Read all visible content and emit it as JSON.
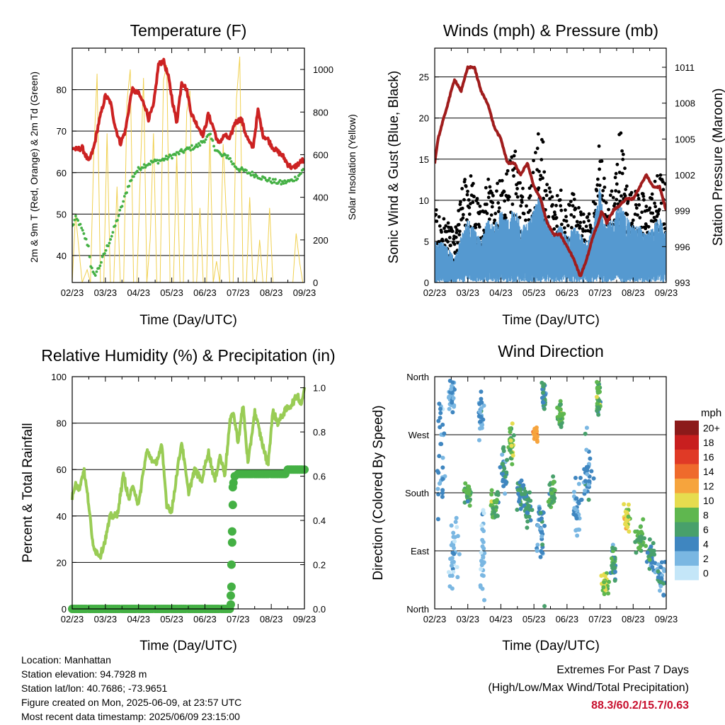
{
  "colors": {
    "temp": "#cc2222",
    "dew": "#44b044",
    "solar": "#f0d050",
    "gust": "#000000",
    "wind": "#5599d0",
    "pressure": "#a01c1c",
    "rh": "#99cc55",
    "precip": "#44b044",
    "extreme": "#c8102e"
  },
  "footer": {
    "location": "Location: Manhattan",
    "elevation": "Station elevation: 94.7928 m",
    "latlon": "Station lat/lon: 40.7686; -73.9651",
    "created": "Figure created on Mon, 2025-06-09, at 23:57 UTC",
    "recent": "Most recent data timestamp: 2025/06/09 23:15:00"
  },
  "extremes": {
    "title": "Extremes For Past 7 Days",
    "subtitle": "(High/Low/Max Wind/Total Precipitation)",
    "values": "88.3/60.2/15.7/0.63"
  },
  "chart_data": [
    {
      "id": "temp",
      "type": "line",
      "title": "Temperature (F)",
      "xlabel": "Time (Day/UTC)",
      "ylabel": "2m & 9m T (Red, Orange) & 2m Td (Green)",
      "ylabel_right": "Solar Insolation (Yellow)",
      "x_ticks": [
        "02/23",
        "03/23",
        "04/23",
        "05/23",
        "06/23",
        "07/23",
        "08/23",
        "09/23"
      ],
      "xlim": [
        0,
        7
      ],
      "ylim": [
        33.5,
        90
      ],
      "y_ticks": [
        40,
        50,
        60,
        70,
        80
      ],
      "ylim_right": [
        0,
        1100
      ],
      "y_ticks_right": [
        0,
        200,
        400,
        600,
        800,
        1000
      ],
      "grid": true,
      "series": [
        {
          "key": "temp",
          "x": [
            0,
            0.15,
            0.3,
            0.5,
            0.65,
            0.8,
            1.0,
            1.15,
            1.3,
            1.45,
            1.6,
            1.8,
            2.0,
            2.2,
            2.3,
            2.45,
            2.6,
            2.75,
            2.9,
            3.05,
            3.15,
            3.3,
            3.45,
            3.6,
            3.8,
            3.95,
            4.1,
            4.25,
            4.4,
            4.6,
            4.75,
            4.9,
            5.1,
            5.2,
            5.35,
            5.45,
            5.6,
            5.75,
            5.9,
            6.05,
            6.2,
            6.35,
            6.5,
            6.65,
            6.8,
            6.95,
            7.0
          ],
          "y": [
            66,
            65.5,
            66,
            62.5,
            66,
            72,
            78.5,
            77,
            71,
            67,
            70,
            80,
            79,
            76,
            73,
            76,
            86,
            87,
            83,
            76,
            72,
            82,
            80,
            74,
            71,
            69,
            74,
            71,
            67,
            69,
            68,
            72,
            73,
            70,
            67,
            66,
            75,
            69,
            68,
            66,
            65,
            64,
            62,
            61,
            62,
            63,
            62
          ]
        },
        {
          "key": "dew",
          "x": [
            0,
            0.1,
            0.2,
            0.35,
            0.5,
            0.55,
            0.65,
            0.8,
            1.0,
            1.2,
            1.5,
            1.7,
            1.9,
            2.1,
            2.4,
            2.7,
            3.0,
            3.3,
            3.6,
            3.8,
            4.0,
            4.15,
            4.3,
            4.5,
            4.7,
            4.85,
            5.0,
            5.3,
            5.5,
            5.8,
            6.0,
            6.3,
            6.6,
            6.8,
            7.0
          ],
          "y": [
            47,
            49,
            48,
            45,
            42,
            38,
            35,
            37,
            41,
            45,
            52,
            57,
            60,
            61.5,
            62.5,
            63,
            64,
            65,
            66,
            66.5,
            68,
            69,
            66,
            64,
            64,
            62,
            61,
            60,
            59.5,
            58.5,
            58,
            57.5,
            58,
            59,
            61
          ]
        },
        {
          "key": "solar",
          "x": [
            0,
            0.1,
            0.3,
            0.45,
            0.55,
            0.65,
            0.75,
            0.85,
            0.95,
            1.05,
            1.15,
            1.25,
            1.35,
            1.45,
            1.55,
            1.65,
            1.75,
            1.85,
            1.95,
            2.05,
            2.15,
            2.25,
            2.35,
            2.45,
            2.55,
            2.65,
            2.75,
            2.85,
            2.95,
            3.05,
            3.15,
            3.25,
            3.35,
            3.45,
            3.55,
            3.65,
            3.75,
            3.85,
            3.95,
            4.05,
            4.15,
            4.25,
            4.35,
            4.45,
            4.55,
            4.65,
            4.75,
            4.85,
            4.95,
            5.05,
            5.15,
            5.25,
            5.35,
            5.45,
            5.55,
            5.65,
            5.75,
            5.85,
            5.95,
            6.05,
            6.15,
            6.25,
            6.35,
            6.45,
            6.55,
            6.65,
            6.75,
            6.85,
            6.95,
            7.0
          ],
          "y": [
            0,
            320,
            0,
            60,
            0,
            600,
            980,
            0,
            0,
            700,
            0,
            0,
            450,
            0,
            0,
            850,
            1000,
            0,
            0,
            500,
            960,
            0,
            200,
            700,
            0,
            0,
            950,
            1020,
            0,
            0,
            600,
            0,
            0,
            800,
            900,
            0,
            0,
            350,
            0,
            0,
            700,
            0,
            100,
            0,
            650,
            300,
            0,
            0,
            860,
            1060,
            0,
            0,
            400,
            0,
            0,
            200,
            0,
            0,
            350,
            0,
            0,
            0,
            0,
            0,
            0,
            0,
            230,
            100,
            0,
            0
          ]
        }
      ]
    },
    {
      "id": "wind",
      "type": "scatter",
      "title": "Winds (mph) & Pressure (mb)",
      "xlabel": "Time (Day/UTC)",
      "ylabel": "Sonic Wind & Gust (Blue, Black)",
      "ylabel_right": "Station Pressure (Maroon)",
      "x_ticks": [
        "02/23",
        "03/23",
        "04/23",
        "05/23",
        "06/23",
        "07/23",
        "08/23",
        "09/23"
      ],
      "xlim": [
        0,
        7
      ],
      "ylim": [
        0,
        28.5
      ],
      "y_ticks": [
        0,
        5,
        10,
        15,
        20,
        25
      ],
      "ylim_right": [
        993,
        1012.6
      ],
      "y_ticks_right": [
        993,
        996,
        999,
        1002,
        1005,
        1008,
        1011
      ],
      "grid": true,
      "gust_envelope": {
        "x": [
          0,
          0.3,
          0.6,
          0.8,
          1.0,
          1.2,
          1.4,
          1.6,
          1.8,
          2.0,
          2.2,
          2.4,
          2.6,
          2.8,
          3.0,
          3.2,
          3.4,
          3.6,
          3.8,
          4.0,
          4.2,
          4.4,
          4.6,
          4.8,
          5.0,
          5.2,
          5.4,
          5.6,
          5.8,
          6.0,
          6.2,
          6.4,
          6.6,
          6.8,
          7.0
        ],
        "y": [
          9,
          8,
          6,
          11,
          15,
          12,
          9,
          13,
          11,
          16,
          14,
          18,
          13,
          11,
          16,
          20,
          13,
          10,
          12,
          10,
          11,
          9,
          8,
          10,
          19,
          10,
          12,
          20,
          13,
          11,
          12,
          10,
          12,
          14,
          12
        ]
      },
      "wind_envelope": {
        "x": [
          0,
          0.3,
          0.6,
          0.8,
          1.0,
          1.2,
          1.4,
          1.6,
          1.8,
          2.0,
          2.2,
          2.4,
          2.6,
          2.8,
          3.0,
          3.2,
          3.4,
          3.6,
          3.8,
          4.0,
          4.2,
          4.4,
          4.6,
          4.8,
          5.0,
          5.2,
          5.4,
          5.6,
          5.8,
          6.0,
          6.2,
          6.4,
          6.6,
          6.8,
          7.0
        ],
        "y": [
          5,
          5,
          3,
          6,
          8,
          7,
          5,
          8,
          7,
          9,
          8,
          9,
          8,
          7,
          9,
          11,
          8,
          6,
          7,
          6,
          7,
          6,
          5,
          7,
          12,
          7,
          8,
          10,
          8,
          7,
          7,
          6,
          7,
          8,
          6
        ]
      },
      "series": [
        {
          "key": "pressure",
          "x": [
            0,
            0.1,
            0.3,
            0.6,
            0.8,
            1.0,
            1.2,
            1.4,
            1.6,
            1.8,
            2.0,
            2.2,
            2.4,
            2.6,
            2.8,
            3.0,
            3.2,
            3.4,
            3.6,
            3.8,
            4.0,
            4.2,
            4.4,
            4.6,
            4.8,
            4.95,
            5.05,
            5.2,
            5.4,
            5.6,
            5.8,
            6.0,
            6.2,
            6.4,
            6.6,
            6.8,
            7.0
          ],
          "y": [
            1003,
            1005,
            1007,
            1010,
            1009,
            1011,
            1011,
            1009,
            1008,
            1006,
            1005,
            1003,
            1003,
            1002,
            1003,
            1001,
            1000,
            998,
            997,
            997,
            996,
            995,
            993.5,
            995,
            997,
            998,
            999,
            998,
            999,
            999.5,
            1000,
            1000,
            1001,
            1002,
            1001,
            1001,
            999
          ]
        }
      ]
    },
    {
      "id": "rh",
      "type": "line",
      "title": "Relative Humidity (%) & Precipitation (in)",
      "xlabel": "Time (Day/UTC)",
      "ylabel": "Percent & Total Rainfall",
      "x_ticks": [
        "02/23",
        "03/23",
        "04/23",
        "05/23",
        "06/23",
        "07/23",
        "08/23",
        "09/23"
      ],
      "xlim": [
        0,
        7
      ],
      "ylim": [
        0,
        100
      ],
      "y_ticks": [
        0,
        20,
        40,
        60,
        80,
        100
      ],
      "ylim_right": [
        0,
        1.05
      ],
      "y_ticks_right": [
        0.0,
        0.2,
        0.4,
        0.6,
        0.8,
        1.0
      ],
      "y_ticks_right_labels": [
        "0.0",
        "0.2",
        "0.4",
        "0.6",
        "0.8",
        "1.0"
      ],
      "grid": true,
      "series": [
        {
          "key": "rh",
          "x": [
            0,
            0.1,
            0.2,
            0.35,
            0.5,
            0.6,
            0.7,
            0.85,
            1.0,
            1.15,
            1.35,
            1.55,
            1.7,
            1.85,
            2.0,
            2.1,
            2.25,
            2.5,
            2.7,
            2.85,
            3.0,
            3.15,
            3.3,
            3.5,
            3.7,
            3.9,
            4.1,
            4.3,
            4.45,
            4.6,
            4.75,
            4.85,
            5.0,
            5.15,
            5.3,
            5.5,
            5.75,
            5.9,
            6.05,
            6.2,
            6.4,
            6.6,
            6.8,
            6.9,
            7.0
          ],
          "y": [
            48,
            55,
            51,
            60,
            45,
            30,
            25,
            23,
            30,
            40,
            40,
            58,
            47,
            53,
            44,
            55,
            68,
            62,
            70,
            45,
            42,
            58,
            72,
            50,
            60,
            55,
            68,
            55,
            66,
            58,
            80,
            85,
            72,
            88,
            62,
            85,
            70,
            62,
            85,
            80,
            85,
            88,
            92,
            88,
            95
          ]
        },
        {
          "key": "precip",
          "x": [
            0,
            0.5,
            1.0,
            1.5,
            2.0,
            2.5,
            3.0,
            3.5,
            4.0,
            4.5,
            4.75,
            4.78,
            4.78,
            4.8,
            4.8,
            4.82,
            4.82,
            4.84,
            4.84,
            4.86,
            4.9,
            5.0,
            5.5,
            6.0,
            6.5,
            7.0
          ],
          "y": [
            0,
            0,
            0,
            0,
            0,
            0,
            0,
            0,
            0,
            0,
            0,
            0.02,
            0.06,
            0.1,
            0.2,
            0.3,
            0.35,
            0.47,
            0.55,
            0.57,
            0.6,
            0.61,
            0.61,
            0.61,
            0.63,
            0.63
          ]
        }
      ]
    },
    {
      "id": "dir",
      "type": "scatter",
      "title": "Wind Direction",
      "xlabel": "Time (Day/UTC)",
      "ylabel": "Direction (Colored By Speed)",
      "x_ticks": [
        "02/23",
        "03/23",
        "04/23",
        "05/23",
        "06/23",
        "07/23",
        "08/23",
        "09/23"
      ],
      "xlim": [
        0,
        7
      ],
      "ylim": [
        0,
        360
      ],
      "y_ticks": [
        0,
        90,
        180,
        270,
        360
      ],
      "y_tick_labels": [
        "North",
        "East",
        "South",
        "West",
        "North"
      ],
      "grid": true,
      "colorbar": {
        "unit": "mph",
        "labels": [
          "20+",
          "18",
          "16",
          "14",
          "12",
          "10",
          "8",
          "6",
          "4",
          "2",
          "0"
        ],
        "colors": [
          "#8c1a1a",
          "#c81f1f",
          "#e03a26",
          "#ef6a2c",
          "#f6a43d",
          "#e6dc4f",
          "#5fb74f",
          "#48a06b",
          "#3f86c0",
          "#7ab7e2",
          "#c4e6f8"
        ]
      },
      "clusters": [
        {
          "x": 0.2,
          "dir": 250,
          "sx": 0.15,
          "sd": 110,
          "speed": 3
        },
        {
          "x": 0.5,
          "dir": 330,
          "sx": 0.1,
          "sd": 25,
          "speed": 3
        },
        {
          "x": 0.55,
          "dir": 90,
          "sx": 0.15,
          "sd": 60,
          "speed": 2
        },
        {
          "x": 1.0,
          "dir": 180,
          "sx": 0.1,
          "sd": 15,
          "speed": 7
        },
        {
          "x": 1.4,
          "dir": 300,
          "sx": 0.06,
          "sd": 30,
          "speed": 3
        },
        {
          "x": 1.45,
          "dir": 90,
          "sx": 0.06,
          "sd": 70,
          "speed": 2
        },
        {
          "x": 1.8,
          "dir": 165,
          "sx": 0.12,
          "sd": 25,
          "speed": 7
        },
        {
          "x": 2.1,
          "dir": 210,
          "sx": 0.1,
          "sd": 40,
          "speed": 5
        },
        {
          "x": 2.3,
          "dir": 250,
          "sx": 0.1,
          "sd": 30,
          "speed": 8
        },
        {
          "x": 2.6,
          "dir": 180,
          "sx": 0.15,
          "sd": 30,
          "speed": 5
        },
        {
          "x": 2.8,
          "dir": 160,
          "sx": 0.1,
          "sd": 25,
          "speed": 6
        },
        {
          "x": 3.05,
          "dir": 270,
          "sx": 0.07,
          "sd": 10,
          "speed": 13
        },
        {
          "x": 3.2,
          "dir": 120,
          "sx": 0.12,
          "sd": 60,
          "speed": 4
        },
        {
          "x": 3.3,
          "dir": 330,
          "sx": 0.06,
          "sd": 25,
          "speed": 5
        },
        {
          "x": 3.55,
          "dir": 180,
          "sx": 0.1,
          "sd": 30,
          "speed": 7
        },
        {
          "x": 3.8,
          "dir": 300,
          "sx": 0.1,
          "sd": 20,
          "speed": 7
        },
        {
          "x": 4.3,
          "dir": 150,
          "sx": 0.12,
          "sd": 40,
          "speed": 3
        },
        {
          "x": 4.6,
          "dir": 210,
          "sx": 0.2,
          "sd": 60,
          "speed": 4
        },
        {
          "x": 4.95,
          "dir": 330,
          "sx": 0.06,
          "sd": 30,
          "speed": 7
        },
        {
          "x": 5.15,
          "dir": 40,
          "sx": 0.12,
          "sd": 20,
          "speed": 9
        },
        {
          "x": 5.4,
          "dir": 70,
          "sx": 0.08,
          "sd": 25,
          "speed": 6
        },
        {
          "x": 5.8,
          "dir": 140,
          "sx": 0.1,
          "sd": 20,
          "speed": 10
        },
        {
          "x": 6.2,
          "dir": 110,
          "sx": 0.12,
          "sd": 20,
          "speed": 7
        },
        {
          "x": 6.55,
          "dir": 80,
          "sx": 0.12,
          "sd": 25,
          "speed": 5
        },
        {
          "x": 6.85,
          "dir": 50,
          "sx": 0.12,
          "sd": 25,
          "speed": 4
        }
      ]
    }
  ]
}
